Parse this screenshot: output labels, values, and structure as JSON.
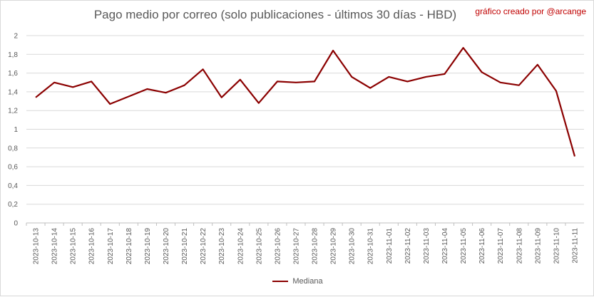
{
  "chart_data": {
    "type": "line",
    "title": "Pago medio por correo (solo publicaciones - últimos 30 días - HBD)",
    "credit": "gráfico creado por @arcange",
    "xlabel": "",
    "ylabel": "",
    "ylim": [
      0,
      2
    ],
    "yticks": [
      "0",
      "0,2",
      "0,4",
      "0,6",
      "0,8",
      "1",
      "1,2",
      "1,4",
      "1,6",
      "1,8",
      "2"
    ],
    "grid": true,
    "legend_position": "bottom",
    "categories": [
      "2023-10-13",
      "2023-10-14",
      "2023-10-15",
      "2023-10-16",
      "2023-10-17",
      "2023-10-18",
      "2023-10-19",
      "2023-10-20",
      "2023-10-21",
      "2023-10-22",
      "2023-10-23",
      "2023-10-24",
      "2023-10-25",
      "2023-10-26",
      "2023-10-27",
      "2023-10-28",
      "2023-10-29",
      "2023-10-30",
      "2023-10-31",
      "2023-11-01",
      "2023-11-02",
      "2023-11-03",
      "2023-11-04",
      "2023-11-05",
      "2023-11-06",
      "2023-11-07",
      "2023-11-08",
      "2023-11-09",
      "2023-11-10",
      "2023-11-11"
    ],
    "series": [
      {
        "name": "Mediana",
        "color": "#8b0000",
        "values": [
          1.34,
          1.5,
          1.45,
          1.51,
          1.27,
          1.35,
          1.43,
          1.39,
          1.47,
          1.64,
          1.34,
          1.53,
          1.28,
          1.51,
          1.5,
          1.51,
          1.84,
          1.56,
          1.44,
          1.56,
          1.51,
          1.56,
          1.59,
          1.87,
          1.61,
          1.5,
          1.47,
          1.69,
          1.41,
          0.71
        ]
      }
    ]
  }
}
